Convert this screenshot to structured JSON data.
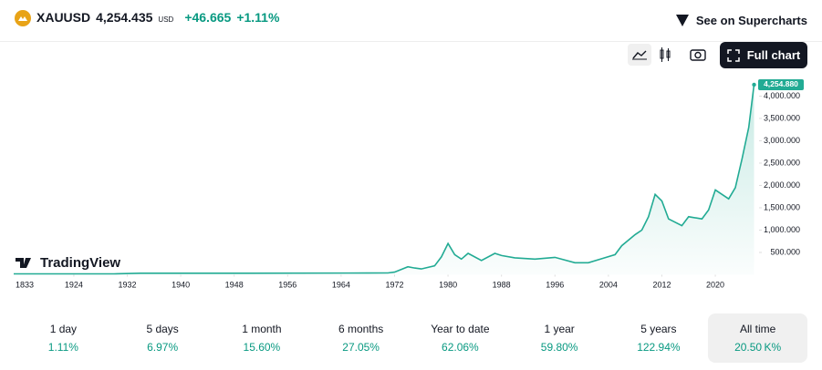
{
  "header": {
    "symbol": "XAUUSD",
    "price": "4,254.435",
    "currency": "USD",
    "change": "+46.665",
    "change_percent": "+1.11%",
    "supercharts": "See on Supercharts"
  },
  "toolbar": {
    "full_chart": "Full chart"
  },
  "logo": "TradingView",
  "chart_data": {
    "type": "line",
    "x": [
      1915,
      1930,
      1934,
      1950,
      1968,
      1971,
      1972,
      1974,
      1975,
      1976,
      1978,
      1979,
      1980,
      1981,
      1982,
      1983,
      1985,
      1987,
      1988,
      1990,
      1993,
      1996,
      1999,
      2001,
      2003,
      2005,
      2006,
      2008,
      2009,
      2010,
      2011,
      2012,
      2013,
      2015,
      2016,
      2018,
      2019,
      2020,
      2021,
      2022,
      2023,
      2024,
      2025,
      2025.8
    ],
    "series": [
      {
        "color": "#22ab94",
        "values": [
          20,
          20,
          35,
          35,
          38,
          40,
          60,
          180,
          150,
          130,
          200,
          400,
          700,
          450,
          350,
          480,
          320,
          480,
          430,
          380,
          350,
          390,
          270,
          270,
          360,
          450,
          650,
          900,
          1000,
          1300,
          1800,
          1650,
          1250,
          1100,
          1300,
          1250,
          1450,
          1900,
          1800,
          1700,
          1950,
          2600,
          3300,
          4254.88
        ]
      }
    ],
    "price_label": "4,254.880",
    "x_start_label": "1833",
    "xlim": [
      1915,
      2026
    ],
    "xticks": [
      1924,
      1932,
      1940,
      1948,
      1956,
      1964,
      1972,
      1980,
      1988,
      1996,
      2004,
      2012,
      2020
    ],
    "ylim": [
      0,
      4560
    ],
    "yticks": [
      {
        "value": 500,
        "label": "500.000"
      },
      {
        "value": 1000,
        "label": "1,000.000"
      },
      {
        "value": 1500,
        "label": "1,500.000"
      },
      {
        "value": 2000,
        "label": "2,000.000"
      },
      {
        "value": 2500,
        "label": "2,500.000"
      },
      {
        "value": 3000,
        "label": "3,000.000"
      },
      {
        "value": 3500,
        "label": "3,500.000"
      },
      {
        "value": 4000,
        "label": "4,000.000"
      }
    ]
  },
  "periods": [
    {
      "label": "1 day",
      "change": "1.11%"
    },
    {
      "label": "5 days",
      "change": "6.97%"
    },
    {
      "label": "1 month",
      "change": "15.60%"
    },
    {
      "label": "6 months",
      "change": "27.05%"
    },
    {
      "label": "Year to date",
      "change": "62.06%"
    },
    {
      "label": "1 year",
      "change": "59.80%"
    },
    {
      "label": "5 years",
      "change": "122.94%"
    },
    {
      "label": "All time",
      "change": "20.50 K%"
    }
  ]
}
